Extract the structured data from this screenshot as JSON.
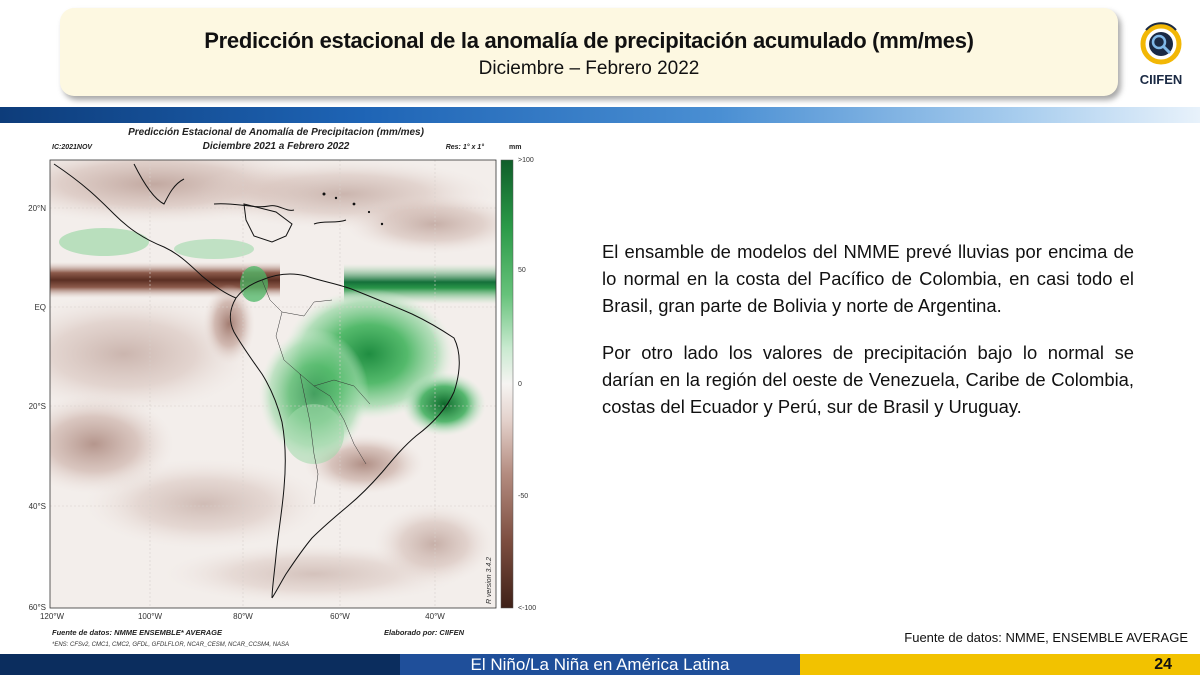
{
  "header": {
    "title": "Predicción estacional de la anomalía de precipitación acumulado (mm/mes)",
    "subtitle": "Diciembre – Febrero 2022"
  },
  "logo": {
    "text": "CIIFEN",
    "icon": "ciifen-logo-icon"
  },
  "map": {
    "title": "Predicción Estacional de Anomalía de Precipitacion (mm/mes)",
    "subtitle": "Diciembre 2021 a Febrero 2022",
    "ic_label": "IC:2021NOV",
    "res_label": "Res: 1° x 1°",
    "unit_label": "mm",
    "colorbar_ticks": [
      ">100",
      "50",
      "0",
      "-50",
      "<-100"
    ],
    "lat_labels": [
      "20°N",
      "EQ",
      "20°S",
      "40°S",
      "60°S"
    ],
    "lon_labels": [
      "120°W",
      "100°W",
      "80°W",
      "60°W",
      "40°W"
    ],
    "version_label": "R version 3.4.2",
    "source_label": "Fuente de datos: NMME ENSEMBLE* AVERAGE",
    "models_label": "*ENS: CFSv2, CMC1, CMC2, GFDL, GFDLFLOR, NCAR_CESM, NCAR_CCSM4, NASA",
    "author_label": "Elaborado por: CIIFEN",
    "colors": {
      "wet": "#1e8a3e",
      "dry": "#6b3a2c",
      "neutral": "#f5f3f0"
    }
  },
  "body": {
    "paragraph1": "El ensamble de modelos del NMME prevé  lluvias por encima de lo normal en la costa del Pacífico de Colombia, en casi todo el Brasil, gran parte de Bolivia y norte de Argentina.",
    "paragraph2": "Por otro lado los valores de precipitación bajo lo normal se darían en la región del oeste de Venezuela, Caribe de Colombia, costas del Ecuador y Perú, sur de Brasil y Uruguay."
  },
  "source_note": "Fuente de datos: NMME, ENSEMBLE AVERAGE",
  "footer": {
    "label": "El Niño/La Niña en América Latina",
    "page": "24"
  }
}
